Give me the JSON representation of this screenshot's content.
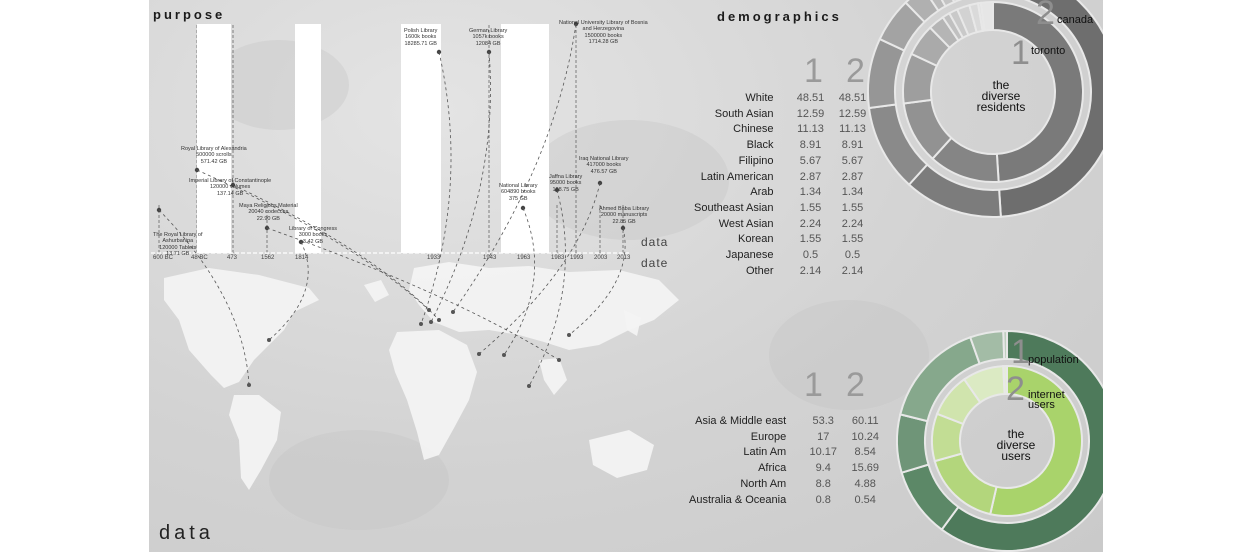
{
  "purpose": {
    "title": "purpose",
    "bottom_word": "data",
    "axis_data_label": "data",
    "axis_date_label": "date",
    "years": [
      "600 BC",
      "48 BC",
      "473",
      "1562",
      "1814",
      "1933",
      "1943",
      "1963",
      "1983",
      "1993",
      "2003",
      "2013"
    ],
    "libraries": [
      {
        "lines": [
          "The Royal Library of",
          "Ashurbanipa",
          "120000 Tablets",
          "13.71 GB"
        ]
      },
      {
        "lines": [
          "Royal Library of Alexandria",
          "500000 scrolls",
          "571.42 GB"
        ]
      },
      {
        "lines": [
          "Imperial Library of Constantinople",
          "120000 volumes",
          "137.14 GB"
        ]
      },
      {
        "lines": [
          "Maya Religious Material",
          "20040 codecces",
          "22.90 GB"
        ]
      },
      {
        "lines": [
          "Library of Congress",
          "3000 books",
          "3.42 GB"
        ]
      },
      {
        "lines": [
          "Polish Library",
          "1600k books",
          "18285.71 GB"
        ]
      },
      {
        "lines": [
          "German Library",
          "1057k books",
          "12084 GB"
        ]
      },
      {
        "lines": [
          "National Library",
          "604890 books",
          "375 GB"
        ]
      },
      {
        "lines": [
          "Jaffna Library",
          "95000 books",
          "108.75 GB"
        ]
      },
      {
        "lines": [
          "National University Library of Bosnia",
          "and Herzegovina",
          "1500000 books",
          "1714.28 GB"
        ]
      },
      {
        "lines": [
          "Iraq National Library",
          "417000 books",
          "476.57 GB"
        ]
      },
      {
        "lines": [
          "Ahmed Baba Library",
          "20000 manuscripts",
          "22.85 GB"
        ]
      }
    ]
  },
  "demographics": {
    "title": "demographics",
    "col1": "1",
    "col2": "2",
    "rows": [
      {
        "label": "White",
        "v1": "48.51",
        "v2": "48.51"
      },
      {
        "label": "South Asian",
        "v1": "12.59",
        "v2": "12.59"
      },
      {
        "label": "Chinese",
        "v1": "11.13",
        "v2": "11.13"
      },
      {
        "label": "Black",
        "v1": "8.91",
        "v2": "8.91"
      },
      {
        "label": "Filipino",
        "v1": "5.67",
        "v2": "5.67"
      },
      {
        "label": "Latin American",
        "v1": "2.87",
        "v2": "2.87"
      },
      {
        "label": "Arab",
        "v1": "1.34",
        "v2": "1.34"
      },
      {
        "label": "Southeast Asian",
        "v1": "1.55",
        "v2": "1.55"
      },
      {
        "label": "West Asian",
        "v1": "2.24",
        "v2": "2.24"
      },
      {
        "label": "Korean",
        "v1": "1.55",
        "v2": "1.55"
      },
      {
        "label": "Japanese",
        "v1": "0.5",
        "v2": "0.5"
      },
      {
        "label": "Other",
        "v1": "2.14",
        "v2": "2.14"
      }
    ],
    "donut": {
      "center_lines": [
        "the",
        "diverse",
        "residents"
      ],
      "ring1_num": "1",
      "ring1_label": "toronto",
      "ring2_num": "2",
      "ring2_label": "canada",
      "colors": {
        "outer": "#6e6e6e",
        "inner": "#7a7a7a",
        "small": "#a9a9a9"
      }
    }
  },
  "users": {
    "col1": "1",
    "col2": "2",
    "rows": [
      {
        "label": "Asia & Middle east",
        "v1": "53.3",
        "v2": "60.11"
      },
      {
        "label": "Europe",
        "v1": "17",
        "v2": "10.24"
      },
      {
        "label": "Latin Am",
        "v1": "10.17",
        "v2": "8.54"
      },
      {
        "label": "Africa",
        "v1": "9.4",
        "v2": "15.69"
      },
      {
        "label": "North Am",
        "v1": "8.8",
        "v2": "4.88"
      },
      {
        "label": "Australia & Oceania",
        "v1": "0.8",
        "v2": "0.54"
      }
    ],
    "donut": {
      "center_lines": [
        "the",
        "diverse",
        "users"
      ],
      "ring1_num": "1",
      "ring1_label": "population",
      "ring2_num": "2",
      "ring2_label_lines": [
        "internet",
        "users"
      ],
      "outer_colors": [
        "#4e7a5b",
        "#5c8867",
        "#6f9578",
        "#86a88c",
        "#a3bca6",
        "#bfd0c0"
      ],
      "inner_colors": [
        "#a9d36b",
        "#b3d67c",
        "#c2dd94",
        "#d0e4ad",
        "#dbeac3",
        "#e5efd6"
      ]
    }
  },
  "chart_data": [
    {
      "type": "bar",
      "title": "purpose",
      "xlabel": "date",
      "ylabel": "data",
      "categories": [
        "600 BC",
        "48 BC",
        "473",
        "1562",
        "1814",
        "1933",
        "1943",
        "1963",
        "1983",
        "1993",
        "2003",
        "2013"
      ],
      "series": [
        {
          "values": [
            13.71,
            571.42,
            137.14,
            22.9,
            3.42,
            18285.71,
            12084,
            375,
            108.75,
            1714.28,
            476.57,
            22.85
          ]
        }
      ]
    },
    {
      "type": "pie",
      "title": "the diverse residents",
      "categories": [
        "White",
        "South Asian",
        "Chinese",
        "Black",
        "Filipino",
        "Latin American",
        "Arab",
        "Southeast Asian",
        "West Asian",
        "Korean",
        "Japanese",
        "Other"
      ],
      "series": [
        {
          "name": "toronto",
          "values": [
            48.51,
            12.59,
            11.13,
            8.91,
            5.67,
            2.87,
            1.34,
            1.55,
            2.24,
            1.55,
            0.5,
            2.14
          ]
        },
        {
          "name": "canada",
          "values": [
            48.51,
            12.59,
            11.13,
            8.91,
            5.67,
            2.87,
            1.34,
            1.55,
            2.24,
            1.55,
            0.5,
            2.14
          ]
        }
      ]
    },
    {
      "type": "pie",
      "title": "the diverse users",
      "categories": [
        "Asia & Middle east",
        "Europe",
        "Latin Am",
        "Africa",
        "North Am",
        "Australia & Oceania"
      ],
      "series": [
        {
          "name": "population",
          "values": [
            53.3,
            17,
            10.17,
            9.4,
            8.8,
            0.8
          ]
        },
        {
          "name": "internet users",
          "values": [
            60.11,
            10.24,
            8.54,
            15.69,
            4.88,
            0.54
          ]
        }
      ]
    }
  ]
}
